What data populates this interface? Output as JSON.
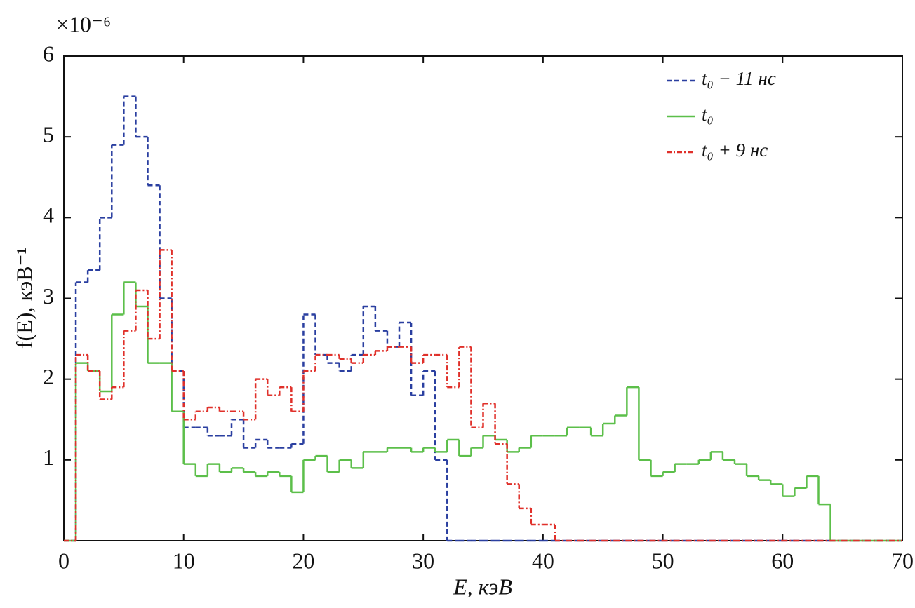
{
  "chart_data": {
    "type": "histogram",
    "multiplier": "×10⁻⁶",
    "xlabel": "E, кэВ",
    "ylabel": "f(E), кэВ⁻¹",
    "bins": [
      0,
      1,
      2,
      3,
      4,
      5,
      6,
      7,
      8,
      9,
      10,
      11,
      12,
      13,
      14,
      15,
      16,
      17,
      18,
      19,
      20,
      21,
      22,
      23,
      24,
      25,
      26,
      27,
      28,
      29,
      30,
      31,
      32,
      33,
      34,
      35,
      36,
      37,
      38,
      39,
      40,
      41,
      42,
      43,
      44,
      45,
      46,
      47,
      48,
      49,
      50,
      51,
      52,
      53,
      54,
      55,
      56,
      57,
      58,
      59,
      60,
      61,
      62,
      63,
      64,
      65,
      66,
      67,
      68,
      69,
      70
    ],
    "series": [
      {
        "name": "t₀ − 11 нс",
        "color": "#2a3fa0",
        "linestyle": "dashed",
        "values": [
          0,
          3.2,
          3.35,
          4.0,
          4.9,
          5.5,
          5.0,
          4.4,
          3.0,
          2.1,
          1.4,
          1.4,
          1.3,
          1.3,
          1.5,
          1.15,
          1.25,
          1.15,
          1.15,
          1.2,
          2.8,
          2.3,
          2.2,
          2.1,
          2.3,
          2.9,
          2.6,
          2.4,
          2.7,
          1.8,
          2.1,
          1.0,
          0,
          0,
          0,
          0,
          0,
          0,
          0,
          0,
          0,
          0,
          0,
          0,
          0,
          0,
          0,
          0,
          0,
          0,
          0,
          0,
          0,
          0,
          0,
          0,
          0,
          0,
          0,
          0,
          0,
          0,
          0,
          0,
          0,
          0,
          0,
          0,
          0,
          0
        ]
      },
      {
        "name": "t₀",
        "color": "#5cbf4a",
        "linestyle": "solid",
        "values": [
          0,
          2.2,
          2.1,
          1.85,
          2.8,
          3.2,
          2.9,
          2.2,
          2.2,
          1.6,
          0.95,
          0.8,
          0.95,
          0.85,
          0.9,
          0.85,
          0.8,
          0.85,
          0.8,
          0.6,
          1.0,
          1.05,
          0.85,
          1.0,
          0.9,
          1.1,
          1.1,
          1.15,
          1.15,
          1.1,
          1.15,
          1.1,
          1.25,
          1.05,
          1.15,
          1.3,
          1.25,
          1.1,
          1.15,
          1.3,
          1.3,
          1.3,
          1.4,
          1.4,
          1.3,
          1.45,
          1.55,
          1.9,
          1.0,
          0.8,
          0.85,
          0.95,
          0.95,
          1.0,
          1.1,
          1.0,
          0.95,
          0.8,
          0.75,
          0.7,
          0.55,
          0.65,
          0.8,
          0.45,
          0,
          0,
          0,
          0,
          0,
          0
        ]
      },
      {
        "name": "t₀ + 9 нс",
        "color": "#e0302a",
        "linestyle": "dashdot",
        "values": [
          0,
          2.3,
          2.1,
          1.75,
          1.9,
          2.6,
          3.1,
          2.5,
          3.6,
          2.1,
          1.5,
          1.6,
          1.65,
          1.6,
          1.6,
          1.5,
          2.0,
          1.8,
          1.9,
          1.6,
          2.1,
          2.3,
          2.3,
          2.25,
          2.2,
          2.3,
          2.35,
          2.4,
          2.4,
          2.2,
          2.3,
          2.3,
          1.9,
          2.4,
          1.4,
          1.7,
          1.2,
          0.7,
          0.4,
          0.2,
          0.2,
          0,
          0,
          0,
          0,
          0,
          0,
          0,
          0,
          0,
          0,
          0,
          0,
          0,
          0,
          0,
          0,
          0,
          0,
          0,
          0,
          0,
          0,
          0,
          0,
          0,
          0,
          0,
          0,
          0
        ]
      }
    ],
    "xlim": [
      0,
      70
    ],
    "xticks": [
      0,
      10,
      20,
      30,
      40,
      50,
      60,
      70
    ],
    "ylim": [
      0,
      6
    ],
    "yticks": [
      1,
      2,
      3,
      4,
      5,
      6
    ],
    "legend": "upper right"
  }
}
